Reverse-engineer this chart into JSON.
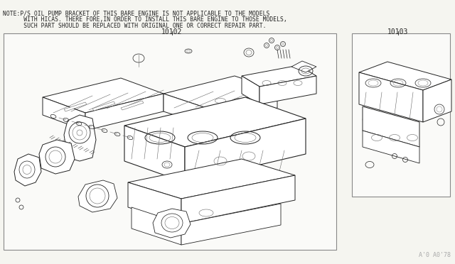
{
  "bg_color": "#f5f5f0",
  "note_line1": "NOTE:P/S OIL PUMP BRACKET OF THIS BARE ENGINE IS NOT APPLICABLE TO THE MODELS",
  "note_line2": "      WITH HICAS. THERE FORE,IN ORDER TO INSTALL THIS BARE ENGINE TO THOSE MODELS,",
  "note_line3": "      SUCH PART SHOULD BE REPLACED WITH ORIGINAL ONE OR CORRECT REPAIR PART.",
  "part_main": "10102",
  "part_short": "10103",
  "watermark": "A'0 A0'78",
  "note_fs": 5.8,
  "label_fs": 7.0,
  "small_fs": 5.5,
  "watermark_fs": 6.0,
  "line_color": "#222222",
  "light_color": "#666666",
  "bg_box": "#fafaf8"
}
